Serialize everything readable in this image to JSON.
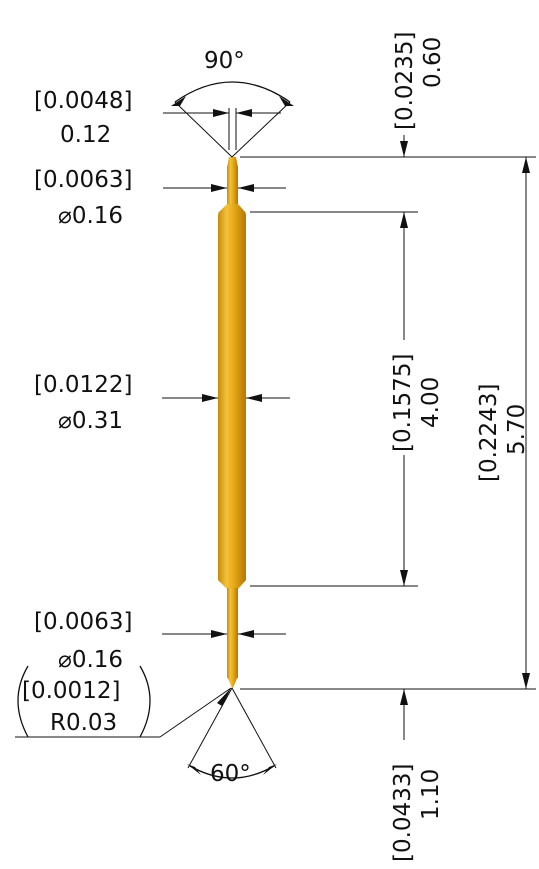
{
  "colors": {
    "pin_body": "#e6a515",
    "pin_dark": "#b77c06",
    "pin_light": "#f6cc49",
    "ink": "#111111"
  },
  "top_angle": {
    "value": "90°"
  },
  "bottom_angle": {
    "value": "60°"
  },
  "tip_width": {
    "inch": "0.0048",
    "mm": "0.12"
  },
  "top_diameter": {
    "inch": "0.0063",
    "mm": "⌀0.16"
  },
  "mid_diameter": {
    "inch": "0.0122",
    "mm": "⌀0.31"
  },
  "bottom_diameter": {
    "inch": "0.0063",
    "mm": "⌀0.16"
  },
  "tip_radius": {
    "inch": "0.0012",
    "mm": "R0.03"
  },
  "top_offset": {
    "inch": "0.0235",
    "mm": "0.60"
  },
  "body_length": {
    "inch": "0.1575",
    "mm": "4.00"
  },
  "overall_length": {
    "inch": "0.2243",
    "mm": "5.70"
  },
  "bottom_offset": {
    "inch": "0.0433",
    "mm": "1.10"
  }
}
